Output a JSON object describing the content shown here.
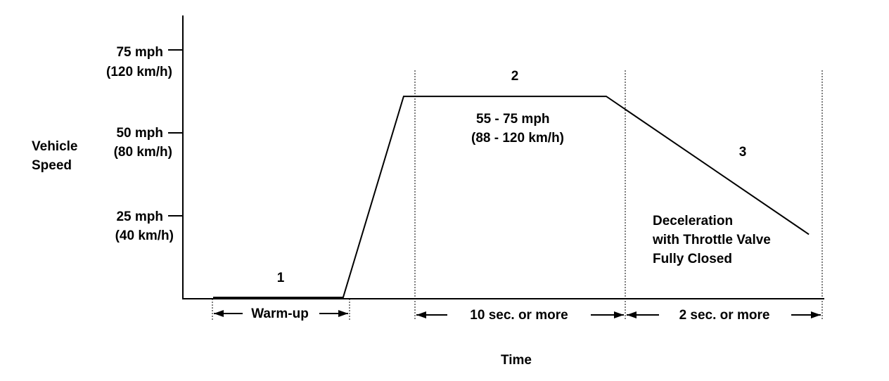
{
  "chart_data": {
    "type": "line",
    "ylabel": [
      "Vehicle",
      "Speed"
    ],
    "xlabel": "Time",
    "y_ticks": [
      {
        "value": 75,
        "label": "75 mph",
        "sublabel": "(120 km/h)"
      },
      {
        "value": 50,
        "label": "50 mph",
        "sublabel": "(80 km/h)"
      },
      {
        "value": 25,
        "label": "25 mph",
        "sublabel": "(40 km/h)"
      }
    ],
    "ylim": [
      0,
      86
    ],
    "series": [
      {
        "x": [
          1.0,
          5.3,
          7.3,
          14.0,
          20.7
        ],
        "y": [
          0.4,
          0.4,
          61,
          61,
          19.4
        ]
      }
    ],
    "phases": [
      {
        "number": "1",
        "duration": "Warm-up"
      },
      {
        "number": "2",
        "speed_range": "55 - 75 mph",
        "speed_range_metric": "(88 - 120 km/h)",
        "duration": "10 sec. or more"
      },
      {
        "number": "3",
        "description": [
          "Deceleration",
          "with Throttle Valve",
          "Fully Closed"
        ],
        "duration": "2 sec. or more"
      }
    ]
  }
}
